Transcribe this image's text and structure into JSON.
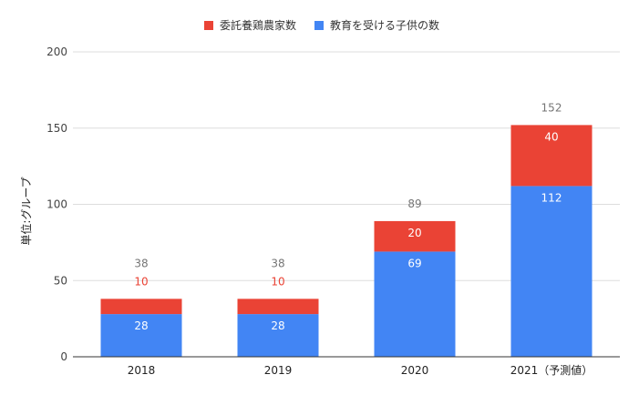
{
  "chart_data": {
    "type": "bar",
    "stacked": true,
    "categories": [
      "2018",
      "2019",
      "2020",
      "2021（予測値）"
    ],
    "series": [
      {
        "name": "教育を受ける子供の数",
        "color": "#4285f4",
        "values": [
          28,
          28,
          69,
          112
        ]
      },
      {
        "name": "委託養鶏農家数",
        "color": "#ea4335",
        "values": [
          10,
          10,
          20,
          40
        ]
      }
    ],
    "totals": [
      38,
      38,
      89,
      152
    ],
    "title": "",
    "xlabel": "",
    "ylabel": "単位:グループ",
    "ylim": [
      0,
      200
    ],
    "yticks": [
      0,
      50,
      100,
      150,
      200
    ],
    "grid": true,
    "legend": "top-center",
    "label_colors": {
      "inside": "#ffffff",
      "outside": "#ea4335",
      "total": "#757575"
    },
    "gridline_color": "#dddddd",
    "axis_color": "#333333"
  }
}
